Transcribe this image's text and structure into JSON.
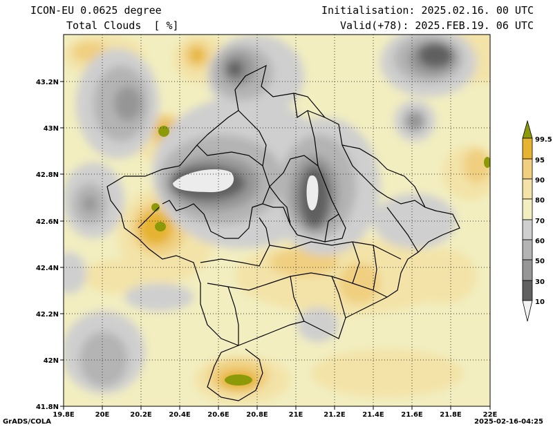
{
  "header": {
    "model": "ICON-EU 0.0625 degree",
    "variable": "Total Clouds  [ %]",
    "init": "Initialisation: 2025.02.16. 00 UTC",
    "valid": "Valid(+78): 2025.FEB.19. 06 UTC"
  },
  "footer": {
    "credit": "GrADS/COLA",
    "timestamp": "2025-02-16-04:25"
  },
  "axes": {
    "lon_ticks": [
      "19.8E",
      "20E",
      "20.2E",
      "20.4E",
      "20.6E",
      "20.8E",
      "21E",
      "21.2E",
      "21.4E",
      "21.6E",
      "21.8E",
      "22E"
    ],
    "lat_ticks": [
      "43.2N",
      "43N",
      "42.8N",
      "42.6N",
      "42.4N",
      "42.2N",
      "42N",
      "41.8N"
    ]
  },
  "colorbar": {
    "labels": [
      "99.5",
      "95",
      "90",
      "80",
      "70",
      "60",
      "50",
      "30",
      "10"
    ],
    "colors": {
      "top_green": "#8c9a0a",
      "c95": "#e6b430",
      "c90": "#f0cf80",
      "c80": "#f3e3a8",
      "c70": "#f2eec0",
      "c60": "#cfcfcf",
      "c50": "#b4b4b4",
      "c30": "#969696",
      "c10": "#616161",
      "bottom": "#f2f2f2"
    }
  }
}
